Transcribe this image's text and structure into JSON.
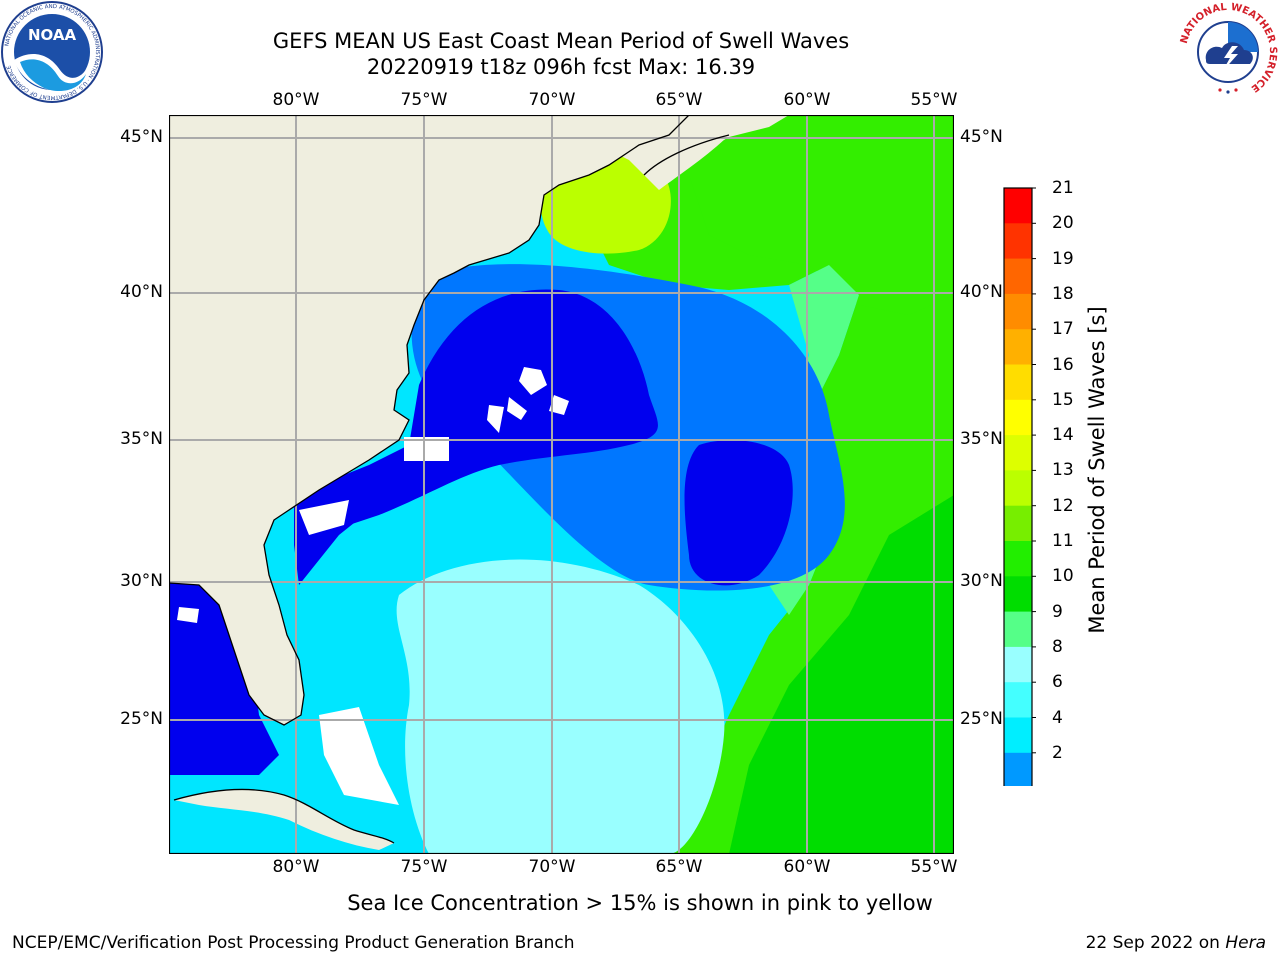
{
  "titles": {
    "line1": "GEFS MEAN US East Coast Mean Period of Swell Waves",
    "line2": "20220919 t18z 096h fcst   Max: 16.39"
  },
  "lon_labels": [
    "80°W",
    "75°W",
    "70°W",
    "65°W",
    "60°W",
    "55°W"
  ],
  "lat_labels": [
    "45°N",
    "40°N",
    "35°N",
    "30°N",
    "25°N"
  ],
  "colorbar": {
    "label": "Mean Period of Swell Waves [s]",
    "ticks": [
      "21",
      "20",
      "19",
      "18",
      "17",
      "16",
      "15",
      "14",
      "13",
      "12",
      "11",
      "10",
      "9",
      "8",
      "6",
      "4",
      "2"
    ],
    "colors": [
      "#ff0000",
      "#ff3300",
      "#ff6600",
      "#ff8c00",
      "#ffb000",
      "#ffdd00",
      "#ffff00",
      "#ddff00",
      "#bbff00",
      "#77ee00",
      "#22ee00",
      "#00dd00",
      "#55ff88",
      "#99ffff",
      "#44ffff",
      "#00eeff",
      "#0099ff",
      "#0066ff"
    ],
    "extend_color": "#0000ee"
  },
  "map_colors": {
    "land": "#efeedf",
    "blue_dark": "#0000ee",
    "blue_mid": "#0077ff",
    "cyan_light": "#00e6ff",
    "cyan_pale": "#99ffff",
    "green_light": "#55ff88",
    "green": "#33ee00",
    "green_bright": "#00dd00",
    "yellow_green": "#bbff00",
    "yellow": "#ffff22",
    "grid": "#aaaaaa"
  },
  "caption": "Sea Ice Concentration > 15% is shown in pink to yellow",
  "footer": {
    "left": "NCEP/EMC/Verification Post Processing Product Generation Branch",
    "right_prefix": "22 Sep 2022 on ",
    "right_italic": "Hera"
  },
  "logos": {
    "noaa_text": "NOAA",
    "noaa_ring": "NATIONAL OCEANIC AND ATMOSPHERIC ADMINISTRATION · U.S. DEPARTMENT OF COMMERCE",
    "nws_ring": "NATIONAL WEATHER SERVICE"
  }
}
